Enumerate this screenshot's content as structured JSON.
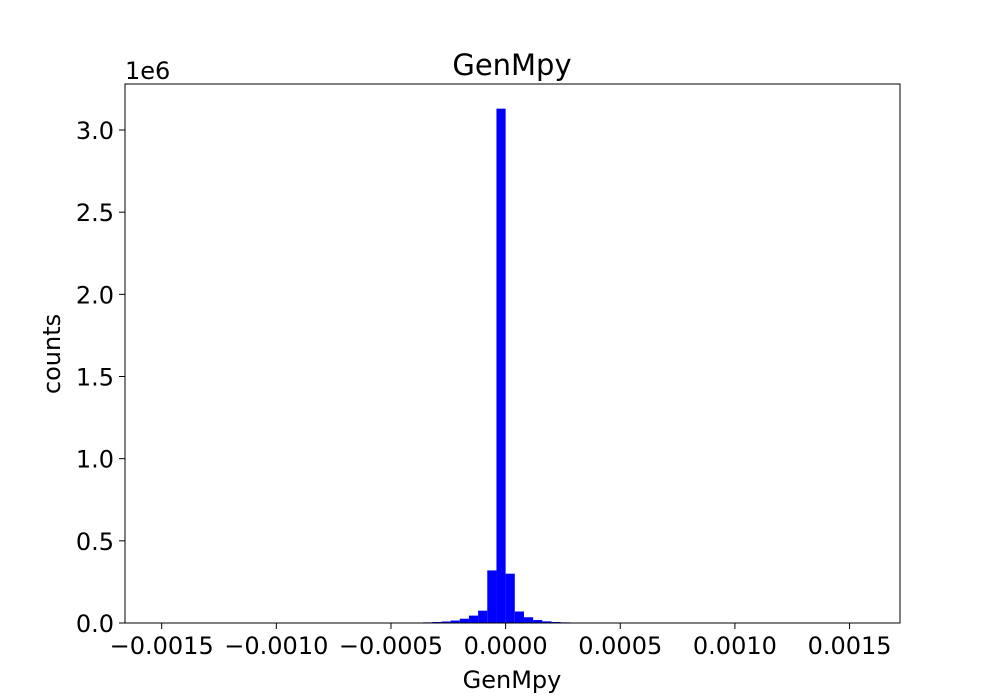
{
  "chart_data": {
    "type": "bar",
    "title": "GenMpy",
    "xlabel": "GenMpy",
    "ylabel": "counts",
    "y_offset_label": "1e6",
    "color": "#0000ff",
    "xlim": [
      -0.00166,
      0.00172
    ],
    "ylim": [
      0,
      3.28
    ],
    "bin_edges": [
      -0.0004,
      -0.00036,
      -0.00032,
      -0.00028,
      -0.00024,
      -0.0002,
      -0.00016,
      -0.00012,
      -8e-05,
      -4e-05,
      0.0,
      4e-05,
      8e-05,
      0.00012,
      0.00016,
      0.0002,
      0.00024,
      0.00028,
      0.00032,
      0.00036,
      0.0004
    ],
    "values": [
      0.002,
      0.004,
      0.006,
      0.009,
      0.015,
      0.026,
      0.045,
      0.075,
      0.32,
      3.13,
      0.3,
      0.07,
      0.035,
      0.018,
      0.01,
      0.006,
      0.004,
      0.002,
      0.001,
      0.001
    ],
    "x_ticks": [
      -0.0015,
      -0.001,
      -0.0005,
      0.0,
      0.0005,
      0.001,
      0.0015
    ],
    "x_tick_labels": [
      "−0.0015",
      "−0.0010",
      "−0.0005",
      "0.0000",
      "0.0005",
      "0.0010",
      "0.0015"
    ],
    "y_ticks": [
      0.0,
      0.5,
      1.0,
      1.5,
      2.0,
      2.5,
      3.0
    ],
    "y_tick_labels": [
      "0.0",
      "0.5",
      "1.0",
      "1.5",
      "2.0",
      "2.5",
      "3.0"
    ],
    "grid": false,
    "legend": "none"
  }
}
